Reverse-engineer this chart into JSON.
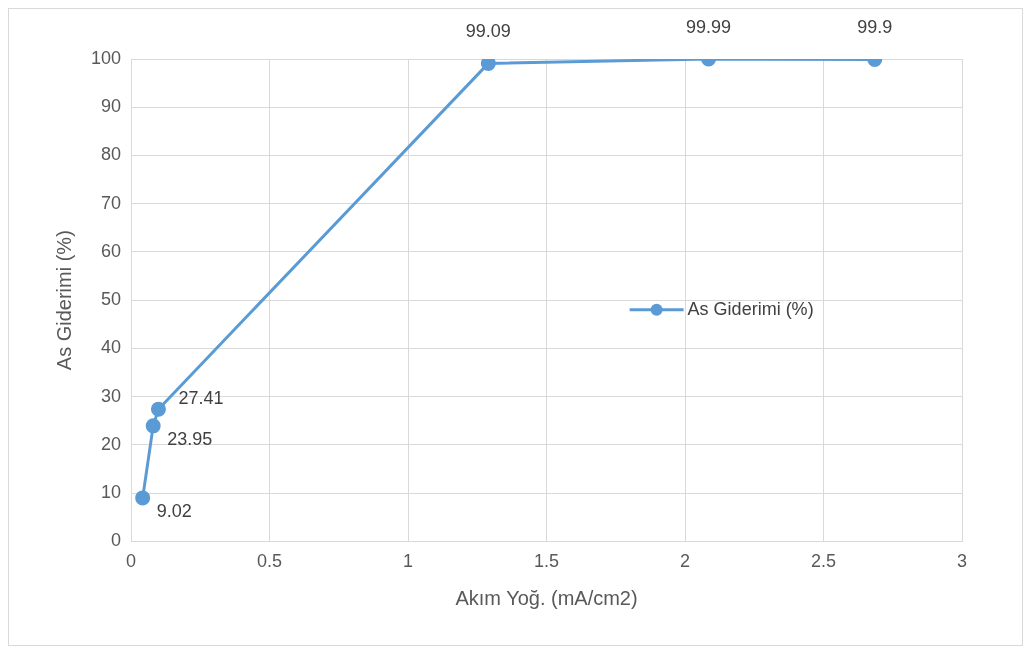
{
  "chart_data": {
    "type": "line",
    "xlabel": "Akım Yoğ. (mA/cm2)",
    "ylabel": "As Giderimi (%)",
    "x": [
      0.042,
      0.08,
      0.099,
      1.29,
      2.085,
      2.685
    ],
    "series": [
      {
        "name": "As Giderimi (%)",
        "color": "#5b9bd5",
        "values": [
          9.02,
          23.95,
          27.41,
          99.09,
          99.99,
          99.9
        ]
      }
    ],
    "xlim": [
      0,
      3
    ],
    "xticks": [
      0,
      0.5,
      1,
      1.5,
      2,
      2.5,
      3
    ],
    "ylim": [
      0,
      100
    ],
    "yticks": [
      0,
      10,
      20,
      30,
      40,
      50,
      60,
      70,
      80,
      90,
      100
    ],
    "grid": true,
    "legend": "right",
    "marker": "circle",
    "line_style": "solid",
    "data_labels": true
  }
}
